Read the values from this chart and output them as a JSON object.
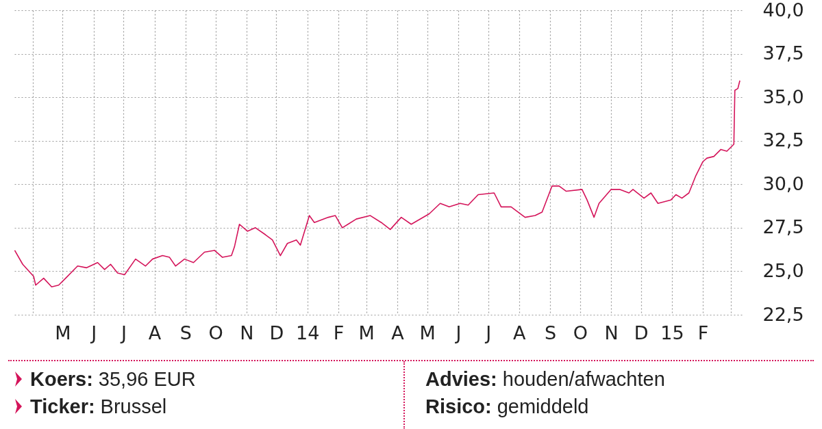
{
  "chart_data": {
    "type": "line",
    "x": [
      "2013-03-14",
      "2013-03-22",
      "2013-04-02",
      "2013-04-04",
      "2013-04-12",
      "2013-04-20",
      "2013-04-27",
      "2013-05-04",
      "2013-05-16",
      "2013-05-25",
      "2013-06-05",
      "2013-06-12",
      "2013-06-18",
      "2013-06-25",
      "2013-07-02",
      "2013-07-13",
      "2013-07-23",
      "2013-07-30",
      "2013-08-09",
      "2013-08-16",
      "2013-08-22",
      "2013-08-31",
      "2013-09-09",
      "2013-09-20",
      "2013-09-30",
      "2013-10-08",
      "2013-10-17",
      "2013-10-20",
      "2013-10-25",
      "2013-11-02",
      "2013-11-10",
      "2013-11-20",
      "2013-11-27",
      "2013-12-05",
      "2013-12-12",
      "2013-12-21",
      "2013-12-25",
      "2014-01-03",
      "2014-01-08",
      "2014-01-22",
      "2014-01-29",
      "2014-02-05",
      "2014-02-19",
      "2014-03-05",
      "2014-03-16",
      "2014-03-25",
      "2014-04-05",
      "2014-04-15",
      "2014-05-03",
      "2014-05-14",
      "2014-05-23",
      "2014-06-03",
      "2014-06-11",
      "2014-06-21",
      "2014-07-07",
      "2014-07-14",
      "2014-07-24",
      "2014-08-07",
      "2014-08-17",
      "2014-08-24",
      "2014-09-03",
      "2014-09-10",
      "2014-09-17",
      "2014-10-03",
      "2014-10-08",
      "2014-10-15",
      "2014-10-20",
      "2014-11-01",
      "2014-11-10",
      "2014-11-19",
      "2014-11-23",
      "2014-12-04",
      "2014-12-11",
      "2014-12-18",
      "2014-12-31",
      "2015-01-05",
      "2015-01-11",
      "2015-01-18",
      "2015-01-25",
      "2015-02-01",
      "2015-02-05",
      "2015-02-12",
      "2015-02-19",
      "2015-02-25",
      "2015-03-04",
      "2015-03-05",
      "2015-03-08",
      "2015-03-10"
    ],
    "series": [
      {
        "color": "#d4145a",
        "values": [
          26.2,
          25.4,
          24.7,
          24.2,
          24.6,
          24.1,
          24.2,
          24.6,
          25.3,
          25.2,
          25.5,
          25.1,
          25.4,
          24.9,
          24.8,
          25.7,
          25.3,
          25.7,
          25.9,
          25.8,
          25.3,
          25.7,
          25.5,
          26.1,
          26.2,
          25.8,
          25.9,
          26.4,
          27.7,
          27.3,
          27.5,
          27.1,
          26.8,
          25.9,
          26.6,
          26.8,
          26.5,
          28.2,
          27.8,
          28.1,
          28.2,
          27.5,
          28.0,
          28.2,
          27.8,
          27.4,
          28.1,
          27.7,
          28.3,
          28.9,
          28.7,
          28.9,
          28.8,
          29.4,
          29.5,
          28.7,
          28.7,
          28.1,
          28.2,
          28.4,
          29.9,
          29.9,
          29.6,
          29.7,
          29.1,
          28.1,
          28.9,
          29.7,
          29.7,
          29.5,
          29.7,
          29.2,
          29.5,
          28.9,
          29.1,
          29.4,
          29.2,
          29.5,
          30.5,
          31.3,
          31.5,
          31.6,
          32.0,
          31.9,
          32.3,
          35.4,
          35.5,
          35.96
        ]
      }
    ],
    "xlim": [
      "2013-03-13",
      "2015-03-12"
    ],
    "xticks": [
      {
        "value": "2013-04-01",
        "label": null
      },
      {
        "value": "2013-05-01",
        "label": "M"
      },
      {
        "value": "2013-06-01",
        "label": "J"
      },
      {
        "value": "2013-07-01",
        "label": "J"
      },
      {
        "value": "2013-08-01",
        "label": "A"
      },
      {
        "value": "2013-09-01",
        "label": "S"
      },
      {
        "value": "2013-10-01",
        "label": "O"
      },
      {
        "value": "2013-11-01",
        "label": "N"
      },
      {
        "value": "2013-12-01",
        "label": "D"
      },
      {
        "value": "2014-01-01",
        "label": "14"
      },
      {
        "value": "2014-02-01",
        "label": "F"
      },
      {
        "value": "2014-03-01",
        "label": "M"
      },
      {
        "value": "2014-04-01",
        "label": "A"
      },
      {
        "value": "2014-05-01",
        "label": "M"
      },
      {
        "value": "2014-06-01",
        "label": "J"
      },
      {
        "value": "2014-07-01",
        "label": "J"
      },
      {
        "value": "2014-08-01",
        "label": "A"
      },
      {
        "value": "2014-09-01",
        "label": "S"
      },
      {
        "value": "2014-10-01",
        "label": "O"
      },
      {
        "value": "2014-11-01",
        "label": "N"
      },
      {
        "value": "2014-12-01",
        "label": "D"
      },
      {
        "value": "2015-01-01",
        "label": "15"
      },
      {
        "value": "2015-02-01",
        "label": "F"
      },
      {
        "value": "2015-03-01",
        "label": null
      }
    ],
    "ylim": [
      22.5,
      40
    ],
    "yticks": [
      {
        "value": 22.5,
        "label": "22,5"
      },
      {
        "value": 25,
        "label": "25,0"
      },
      {
        "value": 27.5,
        "label": "27,5"
      },
      {
        "value": 30,
        "label": "30,0"
      },
      {
        "value": 32.5,
        "label": "32,5"
      },
      {
        "value": 35,
        "label": "35,0"
      },
      {
        "value": 37.5,
        "label": "37,5"
      },
      {
        "value": 40,
        "label": "40,0"
      }
    ],
    "grid": true,
    "annotations": [
      "Koers: 35,96 EUR",
      "Ticker: Brussel",
      "Advies: houden/afwachten",
      "Risico: gemiddeld"
    ]
  }
}
